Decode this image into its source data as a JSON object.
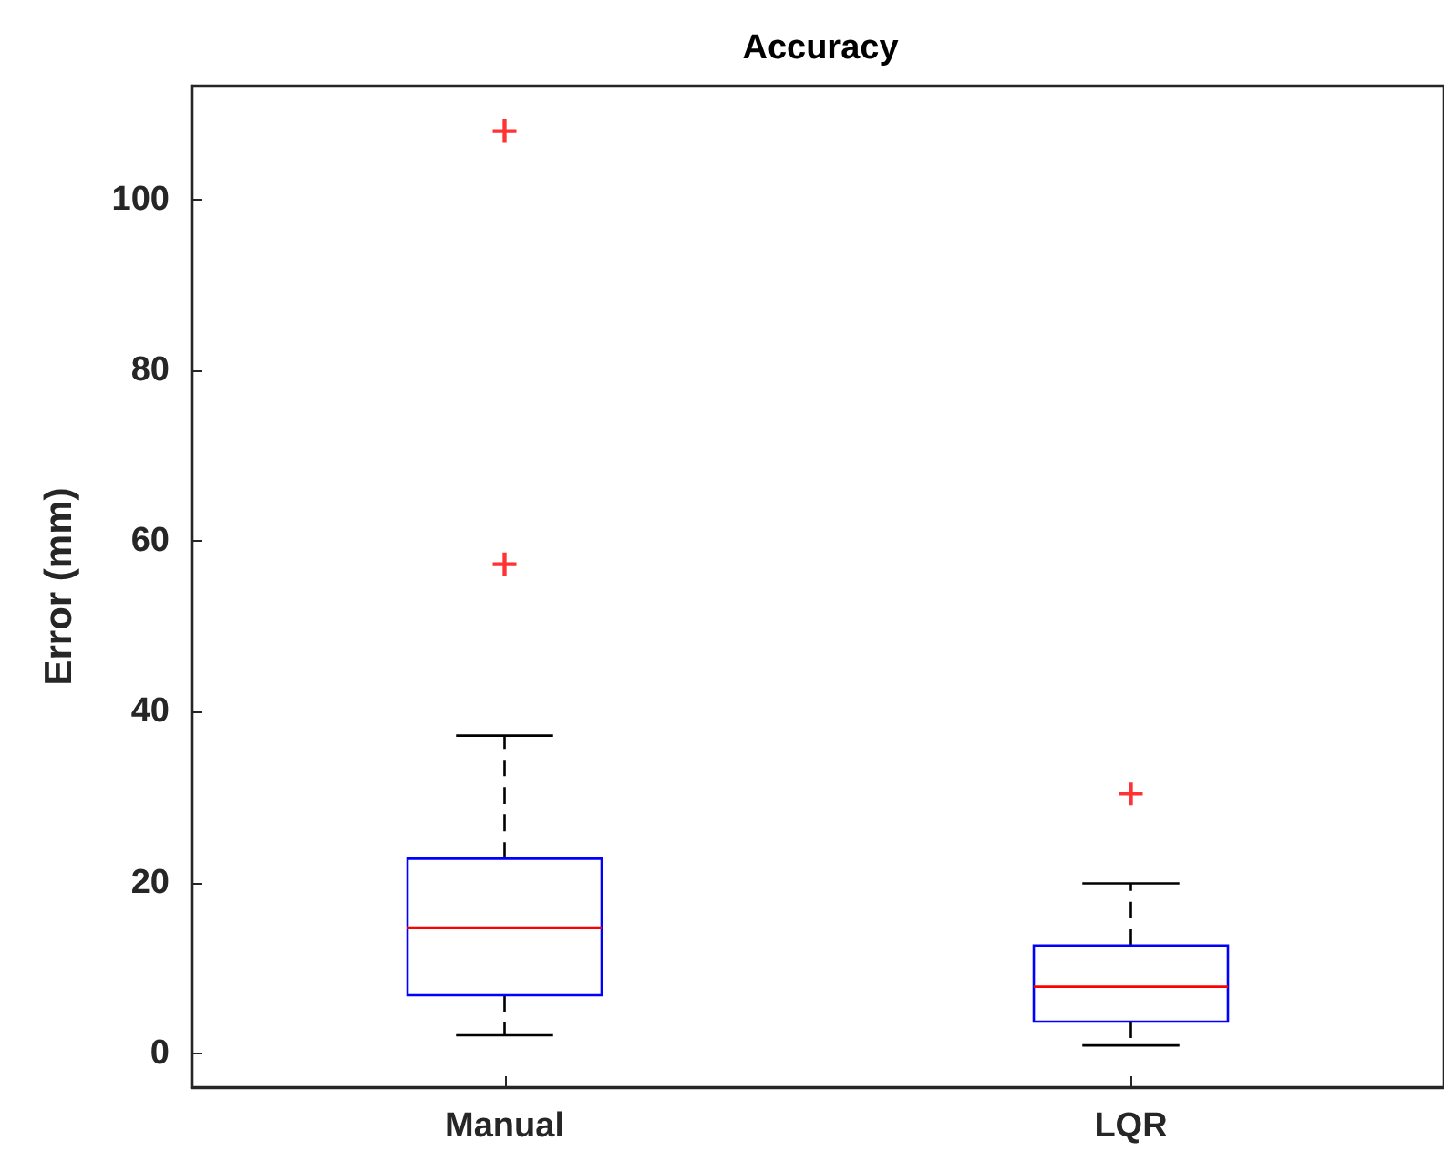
{
  "chart_data": {
    "type": "box",
    "title": "Accuracy",
    "ylabel": "Error (mm)",
    "categories": [
      "Manual",
      "LQR"
    ],
    "color": "#0000ff",
    "boxes": [
      {
        "low": 2.1,
        "q1": 6.8,
        "median": 14.7,
        "q3": 22.8,
        "high": 37.2,
        "outliers": [
          57.3,
          108.1
        ]
      },
      {
        "low": 0.9,
        "q1": 3.7,
        "median": 7.8,
        "q3": 12.6,
        "high": 19.9,
        "outliers": [
          30.4
        ]
      }
    ],
    "ylim": [
      -4,
      113.4
    ],
    "yticks": [
      0,
      20,
      40,
      60,
      80,
      100
    ]
  }
}
